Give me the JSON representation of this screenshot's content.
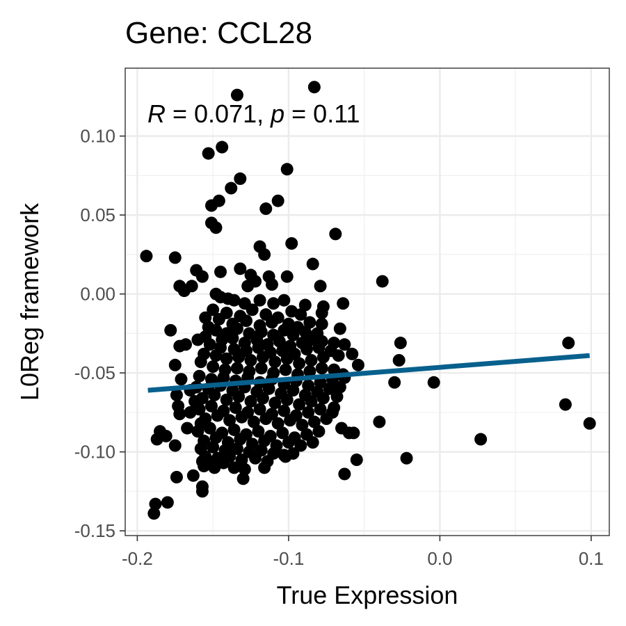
{
  "chart_data": {
    "type": "scatter",
    "title": "Gene: CCL28",
    "xlabel": "True Expression",
    "ylabel": "L0Reg framework",
    "annotation": {
      "r_symbol": "R",
      "r_text": " = 0.071, ",
      "p_symbol": "p",
      "p_text": " = 0.11"
    },
    "xlim": [
      -0.208,
      0.112
    ],
    "ylim": [
      -0.153,
      0.143
    ],
    "x_ticks": [
      -0.2,
      -0.1,
      0.0,
      0.1
    ],
    "x_tick_labels": [
      "-0.2",
      "-0.1",
      "0.0",
      "0.1"
    ],
    "y_ticks": [
      -0.15,
      -0.1,
      -0.05,
      0.0,
      0.05,
      0.1
    ],
    "y_tick_labels": [
      "-0.15",
      "-0.10",
      "-0.05",
      "0.00",
      "0.05",
      "0.10"
    ],
    "grid": true,
    "point_color": "#000000",
    "fit_color": "#08608d",
    "fit_line": {
      "x": [
        -0.193,
        0.099
      ],
      "y": [
        -0.061,
        -0.039
      ]
    },
    "points": [
      [
        -0.134,
        0.126
      ],
      [
        -0.083,
        0.131
      ],
      [
        -0.144,
        0.093
      ],
      [
        -0.153,
        0.089
      ],
      [
        -0.101,
        0.079
      ],
      [
        -0.132,
        0.073
      ],
      [
        -0.138,
        0.067
      ],
      [
        -0.146,
        0.059
      ],
      [
        -0.151,
        0.056
      ],
      [
        -0.107,
        0.059
      ],
      [
        -0.115,
        0.054
      ],
      [
        -0.151,
        0.045
      ],
      [
        -0.148,
        0.042
      ],
      [
        -0.069,
        0.038
      ],
      [
        -0.098,
        0.032
      ],
      [
        -0.194,
        0.024
      ],
      [
        -0.119,
        0.03
      ],
      [
        -0.116,
        0.025
      ],
      [
        -0.175,
        0.023
      ],
      [
        -0.084,
        0.019
      ],
      [
        -0.161,
        0.015
      ],
      [
        -0.145,
        0.014
      ],
      [
        -0.157,
        0.011
      ],
      [
        -0.132,
        0.016
      ],
      [
        -0.125,
        0.012
      ],
      [
        -0.113,
        0.011
      ],
      [
        -0.101,
        0.011
      ],
      [
        -0.038,
        0.008
      ],
      [
        -0.172,
        0.005
      ],
      [
        -0.164,
        0.005
      ],
      [
        -0.169,
        0.002
      ],
      [
        -0.127,
        0.005
      ],
      [
        -0.122,
        0.008
      ],
      [
        -0.079,
        0.005
      ],
      [
        -0.111,
        0.006
      ],
      [
        -0.145,
        -0.002
      ],
      [
        -0.14,
        -0.003
      ],
      [
        -0.148,
        0.0
      ],
      [
        -0.136,
        -0.004
      ],
      [
        -0.129,
        -0.006
      ],
      [
        -0.119,
        -0.004
      ],
      [
        -0.11,
        -0.006
      ],
      [
        -0.103,
        -0.004
      ],
      [
        -0.089,
        -0.007
      ],
      [
        -0.077,
        -0.008
      ],
      [
        -0.064,
        -0.006
      ],
      [
        -0.15,
        -0.01
      ],
      [
        -0.141,
        -0.012
      ],
      [
        -0.132,
        -0.014
      ],
      [
        -0.124,
        -0.01
      ],
      [
        -0.115,
        -0.013
      ],
      [
        -0.107,
        -0.015
      ],
      [
        -0.098,
        -0.011
      ],
      [
        -0.092,
        -0.013
      ],
      [
        -0.078,
        -0.012
      ],
      [
        -0.155,
        -0.015
      ],
      [
        -0.146,
        -0.016
      ],
      [
        -0.137,
        -0.019
      ],
      [
        -0.128,
        -0.017
      ],
      [
        -0.119,
        -0.02
      ],
      [
        -0.111,
        -0.018
      ],
      [
        -0.1,
        -0.019
      ],
      [
        -0.094,
        -0.021
      ],
      [
        -0.086,
        -0.018
      ],
      [
        -0.078,
        -0.019
      ],
      [
        -0.153,
        -0.021
      ],
      [
        -0.148,
        -0.023
      ],
      [
        -0.141,
        -0.025
      ],
      [
        -0.134,
        -0.022
      ],
      [
        -0.126,
        -0.025
      ],
      [
        -0.118,
        -0.024
      ],
      [
        -0.11,
        -0.026
      ],
      [
        -0.103,
        -0.023
      ],
      [
        -0.097,
        -0.026
      ],
      [
        -0.089,
        -0.024
      ],
      [
        -0.081,
        -0.025
      ],
      [
        -0.066,
        -0.022
      ],
      [
        -0.178,
        -0.023
      ],
      [
        -0.155,
        -0.027
      ],
      [
        -0.144,
        -0.029
      ],
      [
        -0.137,
        -0.028
      ],
      [
        -0.129,
        -0.031
      ],
      [
        -0.121,
        -0.029
      ],
      [
        -0.114,
        -0.032
      ],
      [
        -0.106,
        -0.03
      ],
      [
        -0.099,
        -0.033
      ],
      [
        -0.091,
        -0.031
      ],
      [
        -0.085,
        -0.029
      ],
      [
        -0.078,
        -0.03
      ],
      [
        -0.07,
        -0.031
      ],
      [
        -0.168,
        -0.032
      ],
      [
        -0.16,
        -0.029
      ],
      [
        -0.152,
        -0.032
      ],
      [
        -0.145,
        -0.034
      ],
      [
        -0.136,
        -0.035
      ],
      [
        -0.128,
        -0.036
      ],
      [
        -0.12,
        -0.034
      ],
      [
        -0.112,
        -0.037
      ],
      [
        -0.104,
        -0.036
      ],
      [
        -0.096,
        -0.038
      ],
      [
        -0.088,
        -0.035
      ],
      [
        -0.08,
        -0.034
      ],
      [
        -0.072,
        -0.036
      ],
      [
        -0.063,
        -0.032
      ],
      [
        -0.026,
        -0.031
      ],
      [
        -0.172,
        -0.033
      ],
      [
        -0.156,
        -0.038
      ],
      [
        -0.148,
        -0.039
      ],
      [
        -0.141,
        -0.041
      ],
      [
        -0.133,
        -0.04
      ],
      [
        -0.125,
        -0.042
      ],
      [
        -0.117,
        -0.04
      ],
      [
        -0.109,
        -0.043
      ],
      [
        -0.101,
        -0.041
      ],
      [
        -0.093,
        -0.044
      ],
      [
        -0.085,
        -0.042
      ],
      [
        -0.077,
        -0.04
      ],
      [
        -0.067,
        -0.039
      ],
      [
        -0.058,
        -0.038
      ],
      [
        -0.054,
        -0.045
      ],
      [
        -0.175,
        -0.045
      ],
      [
        -0.158,
        -0.043
      ],
      [
        -0.15,
        -0.046
      ],
      [
        -0.142,
        -0.048
      ],
      [
        -0.134,
        -0.047
      ],
      [
        -0.126,
        -0.049
      ],
      [
        -0.118,
        -0.047
      ],
      [
        -0.11,
        -0.05
      ],
      [
        -0.102,
        -0.048
      ],
      [
        -0.094,
        -0.051
      ],
      [
        -0.086,
        -0.049
      ],
      [
        -0.078,
        -0.047
      ],
      [
        -0.07,
        -0.048
      ],
      [
        -0.064,
        -0.051
      ],
      [
        -0.027,
        -0.042
      ],
      [
        -0.159,
        -0.052
      ],
      [
        -0.151,
        -0.054
      ],
      [
        -0.143,
        -0.053
      ],
      [
        -0.135,
        -0.055
      ],
      [
        -0.127,
        -0.053
      ],
      [
        -0.119,
        -0.056
      ],
      [
        -0.111,
        -0.054
      ],
      [
        -0.103,
        -0.057
      ],
      [
        -0.095,
        -0.055
      ],
      [
        -0.087,
        -0.058
      ],
      [
        -0.079,
        -0.056
      ],
      [
        -0.071,
        -0.054
      ],
      [
        -0.063,
        -0.053
      ],
      [
        -0.171,
        -0.054
      ],
      [
        -0.03,
        -0.056
      ],
      [
        -0.161,
        -0.059
      ],
      [
        -0.153,
        -0.06
      ],
      [
        -0.145,
        -0.058
      ],
      [
        -0.137,
        -0.061
      ],
      [
        -0.129,
        -0.059
      ],
      [
        -0.121,
        -0.062
      ],
      [
        -0.113,
        -0.06
      ],
      [
        -0.105,
        -0.063
      ],
      [
        -0.097,
        -0.061
      ],
      [
        -0.089,
        -0.064
      ],
      [
        -0.081,
        -0.062
      ],
      [
        -0.073,
        -0.06
      ],
      [
        -0.066,
        -0.059
      ],
      [
        -0.004,
        -0.056
      ],
      [
        -0.165,
        -0.061
      ],
      [
        -0.174,
        -0.064
      ],
      [
        -0.157,
        -0.066
      ],
      [
        -0.149,
        -0.064
      ],
      [
        -0.141,
        -0.067
      ],
      [
        -0.133,
        -0.065
      ],
      [
        -0.125,
        -0.068
      ],
      [
        -0.117,
        -0.066
      ],
      [
        -0.109,
        -0.069
      ],
      [
        -0.101,
        -0.067
      ],
      [
        -0.093,
        -0.07
      ],
      [
        -0.085,
        -0.068
      ],
      [
        -0.077,
        -0.066
      ],
      [
        -0.068,
        -0.065
      ],
      [
        -0.162,
        -0.068
      ],
      [
        -0.07,
        -0.072
      ],
      [
        -0.173,
        -0.071
      ],
      [
        -0.159,
        -0.073
      ],
      [
        -0.151,
        -0.071
      ],
      [
        -0.143,
        -0.074
      ],
      [
        -0.135,
        -0.072
      ],
      [
        -0.127,
        -0.075
      ],
      [
        -0.119,
        -0.073
      ],
      [
        -0.111,
        -0.076
      ],
      [
        -0.103,
        -0.074
      ],
      [
        -0.095,
        -0.077
      ],
      [
        -0.087,
        -0.075
      ],
      [
        -0.079,
        -0.073
      ],
      [
        -0.071,
        -0.075
      ],
      [
        -0.165,
        -0.075
      ],
      [
        0.083,
        -0.07
      ],
      [
        -0.172,
        -0.076
      ],
      [
        -0.155,
        -0.079
      ],
      [
        -0.147,
        -0.077
      ],
      [
        -0.139,
        -0.08
      ],
      [
        -0.131,
        -0.078
      ],
      [
        -0.123,
        -0.081
      ],
      [
        -0.115,
        -0.079
      ],
      [
        -0.107,
        -0.082
      ],
      [
        -0.099,
        -0.08
      ],
      [
        -0.091,
        -0.083
      ],
      [
        -0.083,
        -0.081
      ],
      [
        -0.075,
        -0.079
      ],
      [
        -0.04,
        -0.081
      ],
      [
        -0.158,
        -0.082
      ],
      [
        0.085,
        -0.031
      ],
      [
        -0.167,
        -0.085
      ],
      [
        -0.16,
        -0.087
      ],
      [
        -0.152,
        -0.085
      ],
      [
        -0.144,
        -0.088
      ],
      [
        -0.136,
        -0.086
      ],
      [
        -0.128,
        -0.089
      ],
      [
        -0.12,
        -0.087
      ],
      [
        -0.112,
        -0.09
      ],
      [
        -0.104,
        -0.088
      ],
      [
        -0.096,
        -0.091
      ],
      [
        -0.088,
        -0.089
      ],
      [
        -0.08,
        -0.087
      ],
      [
        -0.065,
        -0.085
      ],
      [
        -0.06,
        -0.088
      ],
      [
        0.099,
        -0.082
      ],
      [
        -0.185,
        -0.087
      ],
      [
        -0.181,
        -0.09
      ],
      [
        -0.187,
        -0.092
      ],
      [
        -0.156,
        -0.093
      ],
      [
        -0.148,
        -0.091
      ],
      [
        -0.14,
        -0.094
      ],
      [
        -0.132,
        -0.092
      ],
      [
        -0.124,
        -0.095
      ],
      [
        -0.116,
        -0.093
      ],
      [
        -0.108,
        -0.096
      ],
      [
        -0.1,
        -0.094
      ],
      [
        -0.092,
        -0.096
      ],
      [
        -0.084,
        -0.094
      ],
      [
        -0.057,
        -0.088
      ],
      [
        0.027,
        -0.092
      ],
      [
        -0.175,
        -0.096
      ],
      [
        -0.158,
        -0.098
      ],
      [
        -0.15,
        -0.097
      ],
      [
        -0.142,
        -0.099
      ],
      [
        -0.134,
        -0.098
      ],
      [
        -0.126,
        -0.1
      ],
      [
        -0.118,
        -0.099
      ],
      [
        -0.11,
        -0.101
      ],
      [
        -0.103,
        -0.102
      ],
      [
        -0.097,
        -0.101
      ],
      [
        -0.155,
        -0.103
      ],
      [
        -0.147,
        -0.104
      ],
      [
        -0.139,
        -0.103
      ],
      [
        -0.131,
        -0.105
      ],
      [
        -0.122,
        -0.104
      ],
      [
        -0.114,
        -0.106
      ],
      [
        -0.102,
        -0.103
      ],
      [
        -0.157,
        -0.106
      ],
      [
        -0.055,
        -0.105
      ],
      [
        -0.022,
        -0.104
      ],
      [
        -0.156,
        -0.109
      ],
      [
        -0.151,
        -0.108
      ],
      [
        -0.143,
        -0.107
      ],
      [
        -0.136,
        -0.11
      ],
      [
        -0.129,
        -0.111
      ],
      [
        -0.116,
        -0.11
      ],
      [
        -0.149,
        -0.11
      ],
      [
        -0.063,
        -0.114
      ],
      [
        -0.13,
        -0.117
      ],
      [
        -0.174,
        -0.116
      ],
      [
        -0.163,
        -0.115
      ],
      [
        -0.157,
        -0.122
      ],
      [
        -0.157,
        -0.125
      ],
      [
        -0.18,
        -0.132
      ],
      [
        -0.188,
        -0.133
      ],
      [
        -0.189,
        -0.139
      ]
    ]
  }
}
